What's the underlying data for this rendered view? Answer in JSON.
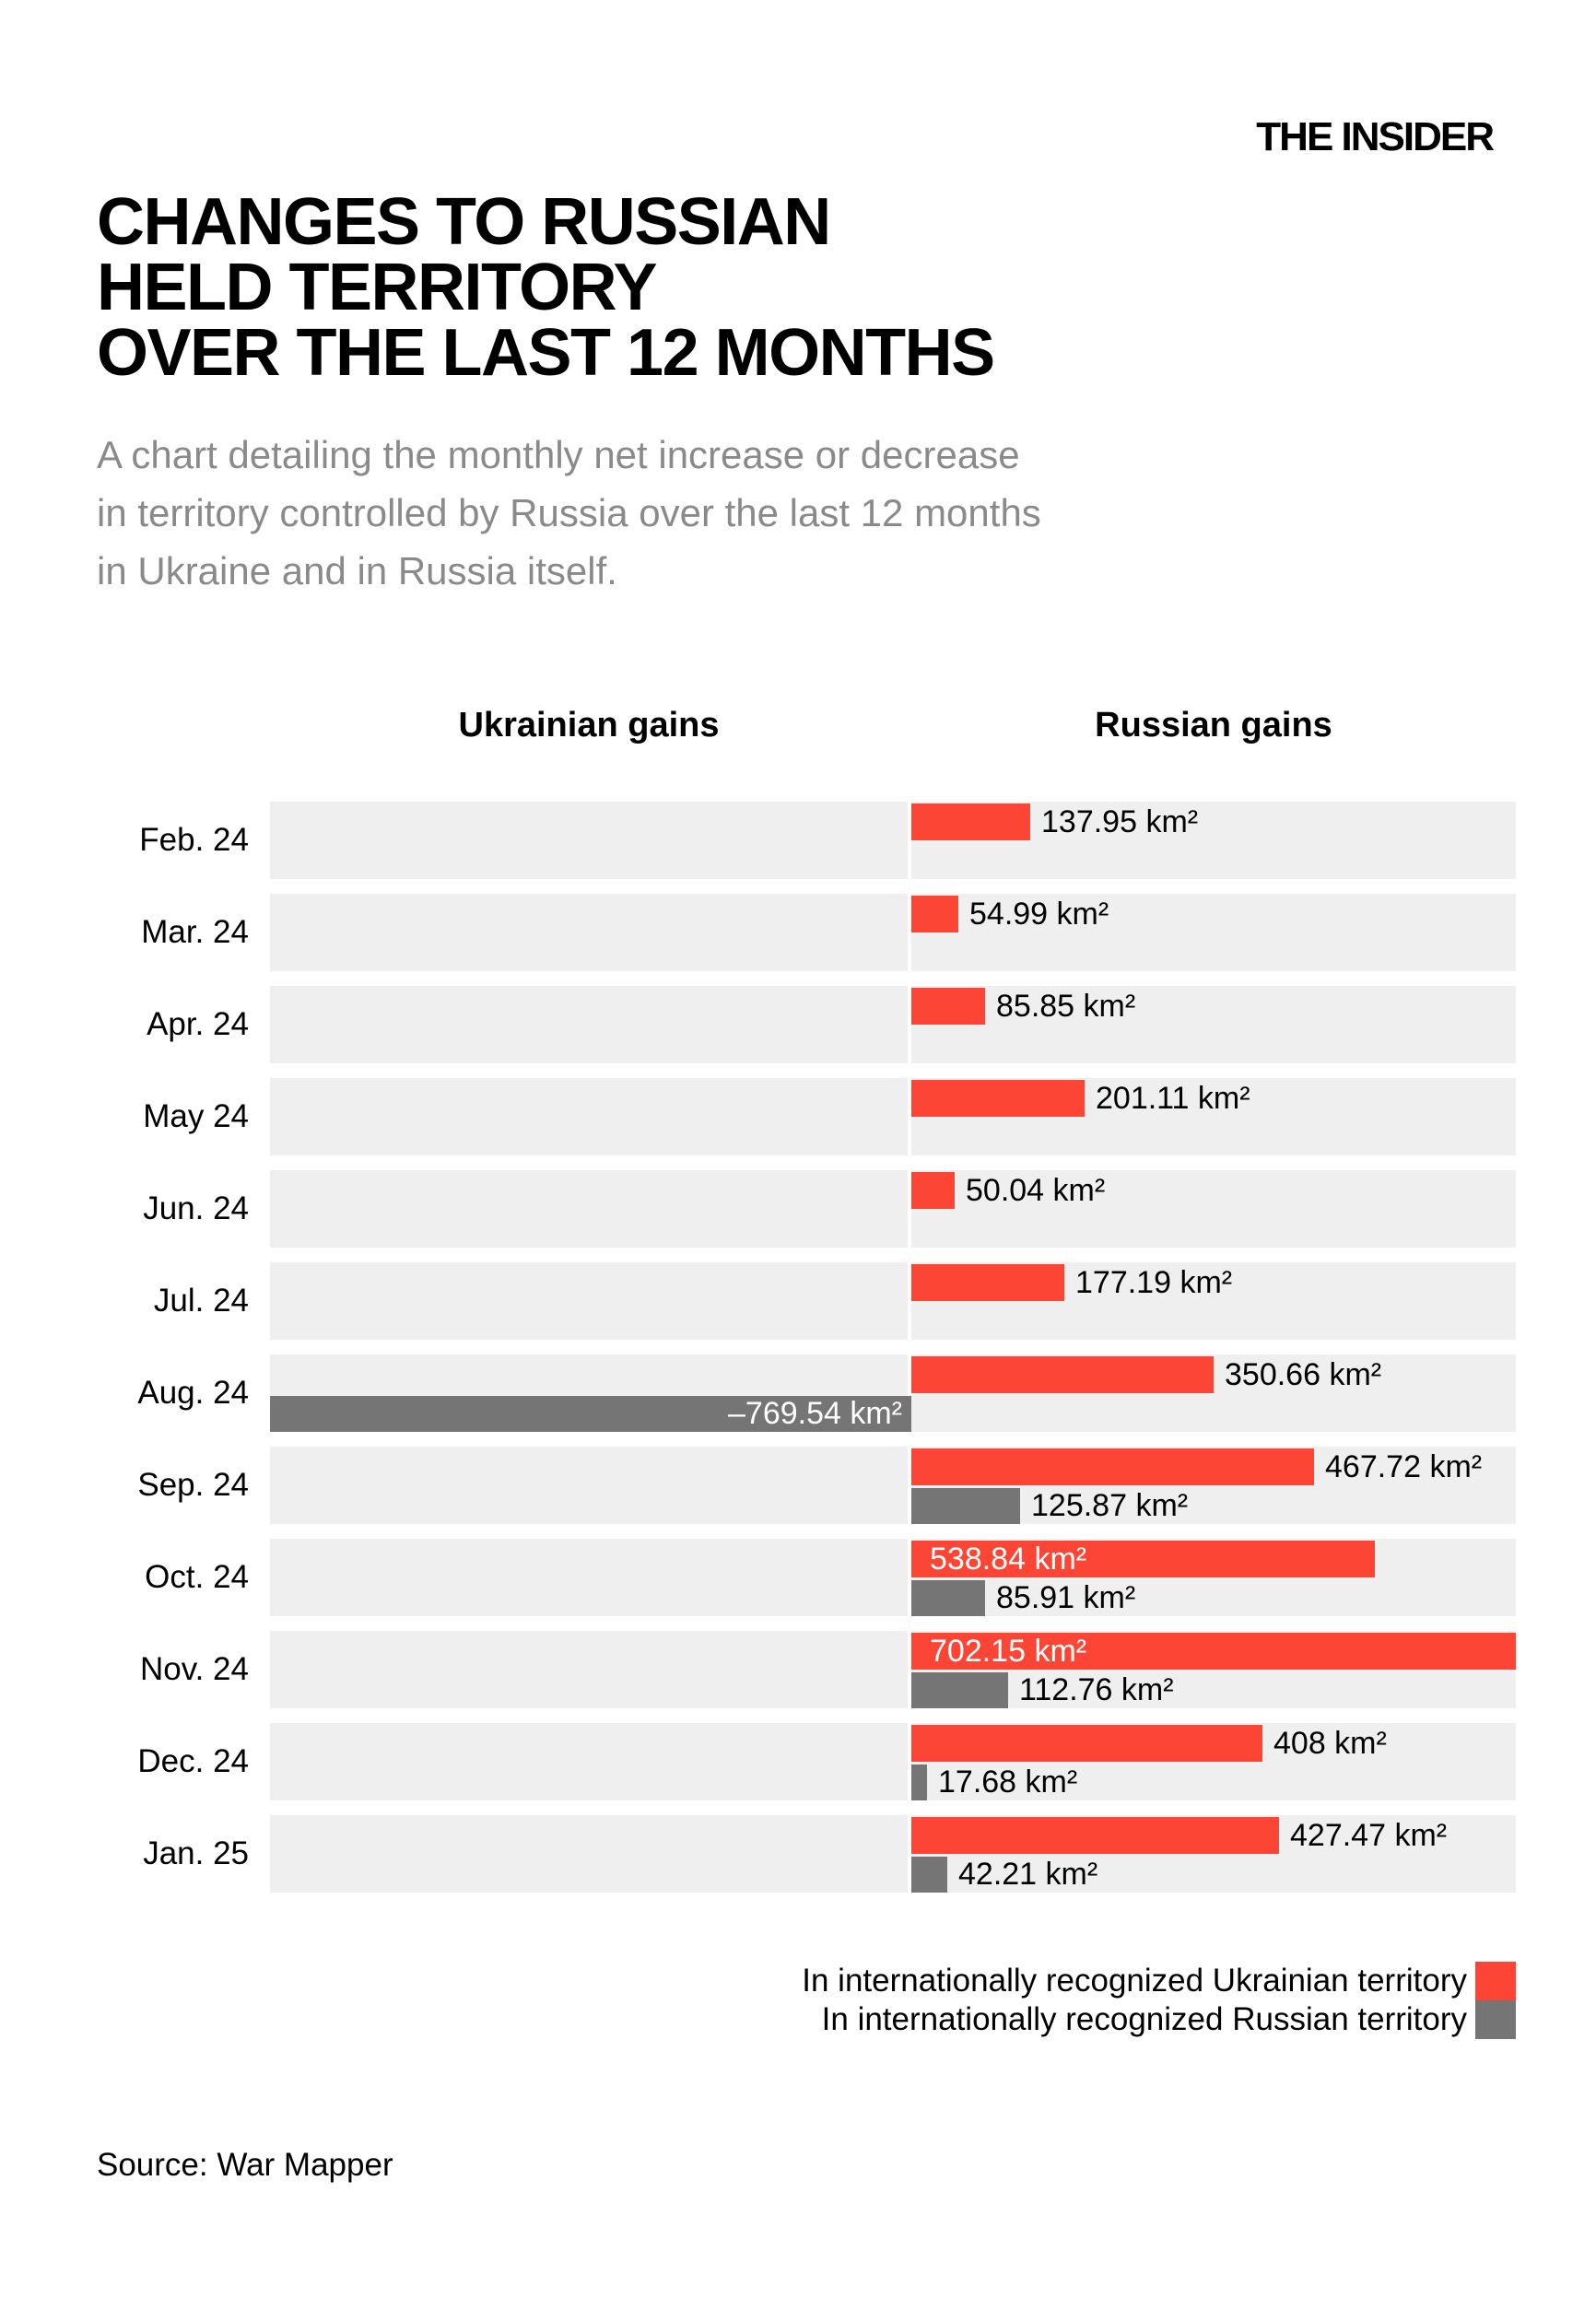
{
  "logo": "THE INSIDER",
  "title_lines": {
    "line1": "CHANGES TO RUSSIAN",
    "line2": "HELD TERRITORY",
    "line3": "OVER THE LAST 12 MONTHS"
  },
  "subtitle_lines": {
    "line1": "A chart detailing the monthly net increase or decrease",
    "line2": "in territory controlled by Russia over the last 12 months",
    "line3": "in Ukraine and in Russia itself."
  },
  "column_headers": {
    "left": "Ukrainian gains",
    "right": "Russian gains"
  },
  "legend": {
    "items": [
      {
        "label": "In internationally recognized Ukrainian territory",
        "color_key": "ukrainian_red"
      },
      {
        "label": "In internationally recognized Russian territory",
        "color_key": "russian_gray"
      }
    ]
  },
  "source": "Source: War Mapper",
  "colors": {
    "ukrainian_red": "#fc4534",
    "russian_gray": "#757575",
    "row_band": "#efefef",
    "subtitle_gray": "#8a8a8a",
    "inside_label": "#ffffff"
  },
  "chart_data": {
    "type": "bar",
    "orientation": "horizontal",
    "unit": "km²",
    "title": "Changes to Russian held territory over the last 12 months",
    "xlabel_left": "Ukrainian gains",
    "xlabel_right": "Russian gains",
    "x_range_km2": [
      -769.54,
      702.15
    ],
    "grid": false,
    "legend_position": "bottom-right",
    "categories": [
      "Feb. 24",
      "Mar. 24",
      "Apr. 24",
      "May 24",
      "Jun. 24",
      "Jul. 24",
      "Aug. 24",
      "Sep. 24",
      "Oct. 24",
      "Nov. 24",
      "Dec. 24",
      "Jan. 25"
    ],
    "series": [
      {
        "name": "In internationally recognized Ukrainian territory",
        "color_key": "ukrainian_red",
        "values": [
          137.95,
          54.99,
          85.85,
          201.11,
          50.04,
          177.19,
          350.66,
          467.72,
          538.84,
          702.15,
          408,
          427.47
        ]
      },
      {
        "name": "In internationally recognized Russian territory",
        "color_key": "russian_gray",
        "values": [
          null,
          null,
          null,
          null,
          null,
          null,
          -769.54,
          125.87,
          85.91,
          112.76,
          17.68,
          42.21
        ]
      }
    ],
    "rows": [
      {
        "month": "Feb. 24",
        "ukr": {
          "value": 137.95,
          "label": "137.95 km²",
          "inside": false
        },
        "rus": null
      },
      {
        "month": "Mar. 24",
        "ukr": {
          "value": 54.99,
          "label": "54.99 km²",
          "inside": false
        },
        "rus": null
      },
      {
        "month": "Apr. 24",
        "ukr": {
          "value": 85.85,
          "label": "85.85 km²",
          "inside": false
        },
        "rus": null
      },
      {
        "month": "May 24",
        "ukr": {
          "value": 201.11,
          "label": "201.11 km²",
          "inside": false
        },
        "rus": null
      },
      {
        "month": "Jun. 24",
        "ukr": {
          "value": 50.04,
          "label": "50.04 km²",
          "inside": false
        },
        "rus": null
      },
      {
        "month": "Jul. 24",
        "ukr": {
          "value": 177.19,
          "label": "177.19 km²",
          "inside": false
        },
        "rus": null
      },
      {
        "month": "Aug. 24",
        "ukr": {
          "value": 350.66,
          "label": "350.66 km²",
          "inside": false
        },
        "rus": {
          "value": -769.54,
          "label": "–769.54 km²",
          "inside": true
        }
      },
      {
        "month": "Sep. 24",
        "ukr": {
          "value": 467.72,
          "label": "467.72 km²",
          "inside": false
        },
        "rus": {
          "value": 125.87,
          "label": "125.87 km²",
          "inside": false
        }
      },
      {
        "month": "Oct. 24",
        "ukr": {
          "value": 538.84,
          "label": "538.84 km²",
          "inside": true
        },
        "rus": {
          "value": 85.91,
          "label": "85.91 km²",
          "inside": false
        }
      },
      {
        "month": "Nov. 24",
        "ukr": {
          "value": 702.15,
          "label": "702.15 km²",
          "inside": true
        },
        "rus": {
          "value": 112.76,
          "label": "112.76 km²",
          "inside": false
        }
      },
      {
        "month": "Dec. 24",
        "ukr": {
          "value": 408,
          "label": "408 km²",
          "inside": false
        },
        "rus": {
          "value": 17.68,
          "label": "17.68 km²",
          "inside": false
        }
      },
      {
        "month": "Jan. 25",
        "ukr": {
          "value": 427.47,
          "label": "427.47 km²",
          "inside": false
        },
        "rus": {
          "value": 42.21,
          "label": "42.21 km²",
          "inside": false
        }
      }
    ]
  }
}
